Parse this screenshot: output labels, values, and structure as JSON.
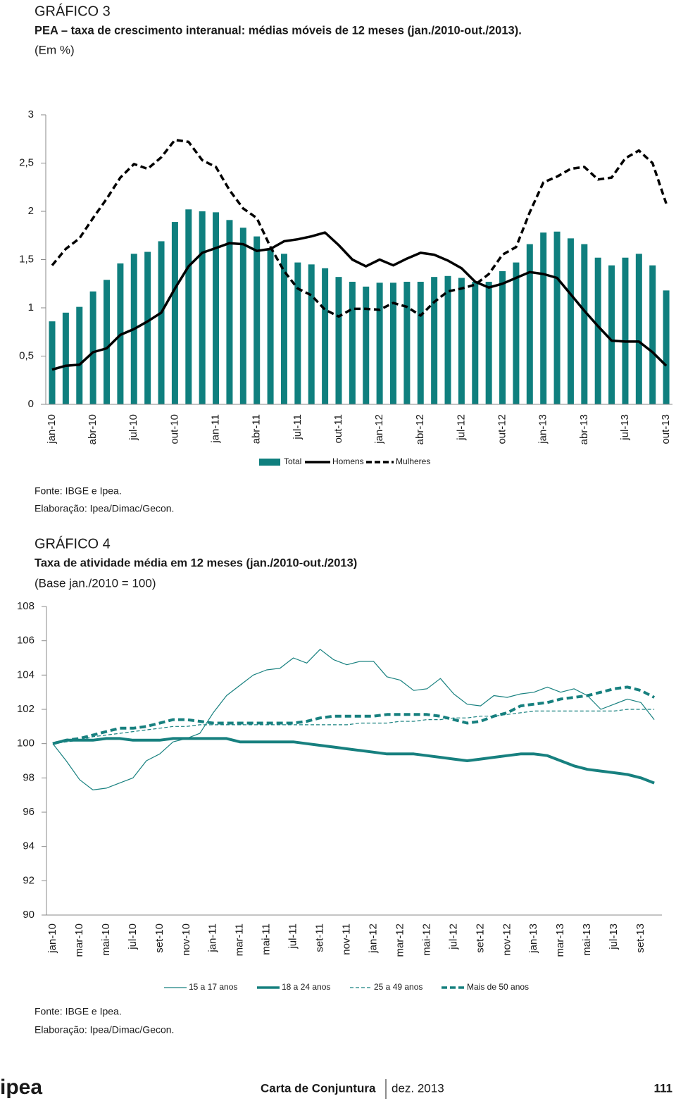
{
  "chart_data": [
    {
      "type": "bar",
      "label": "GRÁFICO 3",
      "title": "PEA – taxa de crescimento interanual: médias móveis de 12 meses (jan./2010-out./2013).",
      "subtitle": "(Em %)",
      "categories": [
        "jan-10",
        null,
        null,
        "abr-10",
        null,
        null,
        "jul-10",
        null,
        null,
        "out-10",
        null,
        null,
        "jan-11",
        null,
        null,
        "abr-11",
        null,
        null,
        "jul-11",
        null,
        null,
        "out-11",
        null,
        null,
        "jan-12",
        null,
        null,
        "abr-12",
        null,
        null,
        "jul-12",
        null,
        null,
        "out-12",
        null,
        null,
        "jan-13",
        null,
        null,
        "abr-13",
        null,
        null,
        "jul-13",
        null,
        null,
        "out-13"
      ],
      "series": [
        {
          "name": "Total",
          "type": "bar",
          "color": "#0f7f7e",
          "values": [
            0.86,
            0.95,
            1.01,
            1.17,
            1.29,
            1.46,
            1.56,
            1.58,
            1.69,
            1.89,
            2.02,
            2.0,
            1.99,
            1.91,
            1.83,
            1.74,
            1.61,
            1.56,
            1.47,
            1.45,
            1.41,
            1.32,
            1.27,
            1.22,
            1.26,
            1.26,
            1.27,
            1.27,
            1.32,
            1.33,
            1.31,
            1.27,
            1.27,
            1.38,
            1.47,
            1.66,
            1.78,
            1.79,
            1.72,
            1.66,
            1.52,
            1.44,
            1.52,
            1.56,
            1.44,
            1.18
          ]
        },
        {
          "name": "Homens",
          "type": "line",
          "style": "solid",
          "color": "#000000",
          "values": [
            0.36,
            0.4,
            0.41,
            0.54,
            0.58,
            0.72,
            0.78,
            0.86,
            0.95,
            1.2,
            1.43,
            1.57,
            1.62,
            1.67,
            1.66,
            1.59,
            1.61,
            1.69,
            1.71,
            1.74,
            1.78,
            1.65,
            1.5,
            1.43,
            1.5,
            1.44,
            1.51,
            1.57,
            1.55,
            1.49,
            1.41,
            1.27,
            1.21,
            1.25,
            1.31,
            1.37,
            1.35,
            1.31,
            1.14,
            0.97,
            0.81,
            0.66,
            0.65,
            0.65,
            0.54,
            0.4
          ]
        },
        {
          "name": "Mulheres",
          "type": "line",
          "style": "dashed",
          "color": "#000000",
          "values": [
            1.44,
            1.61,
            1.72,
            1.93,
            2.13,
            2.35,
            2.49,
            2.44,
            2.56,
            2.74,
            2.72,
            2.53,
            2.46,
            2.22,
            2.03,
            1.93,
            1.63,
            1.38,
            1.2,
            1.13,
            0.98,
            0.91,
            0.99,
            0.99,
            0.98,
            1.05,
            1.01,
            0.92,
            1.06,
            1.17,
            1.2,
            1.24,
            1.35,
            1.55,
            1.63,
            1.99,
            2.3,
            2.36,
            2.44,
            2.46,
            2.33,
            2.35,
            2.55,
            2.63,
            2.5,
            2.08
          ]
        }
      ],
      "ylim": [
        0,
        3
      ],
      "yticks": [
        0,
        {
          "value": 0.5,
          "label": "0,5"
        },
        1,
        {
          "value": 1.5,
          "label": "1,5"
        },
        2,
        {
          "value": 2.5,
          "label": "2,5"
        },
        3
      ],
      "source": "Fonte: IBGE e Ipea.",
      "credit": "Elaboração: Ipea/Dimac/Gecon."
    },
    {
      "type": "line",
      "label": "GRÁFICO 4",
      "title": "Taxa de atividade média em 12 meses (jan./2010-out./2013)",
      "subtitle": "(Base jan./2010 = 100)",
      "categories": [
        "jan-10",
        null,
        "mar-10",
        null,
        "mai-10",
        null,
        "jul-10",
        null,
        "set-10",
        null,
        "nov-10",
        null,
        "jan-11",
        null,
        "mar-11",
        null,
        "mai-11",
        null,
        "jul-11",
        null,
        "set-11",
        null,
        "nov-11",
        null,
        "jan-12",
        null,
        "mar-12",
        null,
        "mai-12",
        null,
        "jul-12",
        null,
        "set-12",
        null,
        "nov-12",
        null,
        "jan-13",
        null,
        "mar-13",
        null,
        "mai-13",
        null,
        "jul-13",
        null,
        "set-13",
        null
      ],
      "series": [
        {
          "name": "15 a 17 anos",
          "type": "line",
          "style": "solid",
          "weight": "thin",
          "color": "#17807f",
          "values": [
            100,
            99.0,
            97.9,
            97.3,
            97.4,
            97.7,
            98.0,
            99.0,
            99.4,
            100.1,
            100.3,
            100.6,
            101.8,
            102.8,
            103.4,
            104.0,
            104.3,
            104.4,
            105.0,
            104.7,
            105.5,
            104.9,
            104.6,
            104.8,
            104.8,
            103.9,
            103.7,
            103.1,
            103.2,
            103.8,
            102.9,
            102.3,
            102.2,
            102.8,
            102.7,
            102.9,
            103.0,
            103.3,
            103.0,
            103.2,
            102.8,
            102.0,
            102.3,
            102.6,
            102.4,
            101.4
          ]
        },
        {
          "name": "18 a 24 anos",
          "type": "line",
          "style": "solid",
          "weight": "thick",
          "color": "#17807f",
          "values": [
            100,
            100.2,
            100.2,
            100.2,
            100.3,
            100.3,
            100.2,
            100.2,
            100.2,
            100.3,
            100.3,
            100.3,
            100.3,
            100.3,
            100.1,
            100.1,
            100.1,
            100.1,
            100.1,
            100.0,
            99.9,
            99.8,
            99.7,
            99.6,
            99.5,
            99.4,
            99.4,
            99.4,
            99.3,
            99.2,
            99.1,
            99.0,
            99.1,
            99.2,
            99.3,
            99.4,
            99.4,
            99.3,
            99.0,
            98.7,
            98.5,
            98.4,
            98.3,
            98.2,
            98.0,
            97.7
          ]
        },
        {
          "name": "25 a 49 anos",
          "type": "line",
          "style": "dashed",
          "weight": "thin",
          "color": "#17807f",
          "values": [
            100,
            100.1,
            100.2,
            100.4,
            100.5,
            100.6,
            100.7,
            100.8,
            100.9,
            101.0,
            101.0,
            101.1,
            101.1,
            101.1,
            101.1,
            101.1,
            101.1,
            101.1,
            101.1,
            101.1,
            101.1,
            101.1,
            101.1,
            101.2,
            101.2,
            101.2,
            101.3,
            101.3,
            101.4,
            101.4,
            101.5,
            101.5,
            101.6,
            101.6,
            101.7,
            101.8,
            101.9,
            101.9,
            101.9,
            101.9,
            101.9,
            101.9,
            101.9,
            102.0,
            102.0,
            102.0
          ]
        },
        {
          "name": "Mais de 50 anos",
          "type": "line",
          "style": "dashed",
          "weight": "thick",
          "color": "#17807f",
          "values": [
            100,
            100.2,
            100.3,
            100.5,
            100.7,
            100.9,
            100.9,
            101.0,
            101.2,
            101.4,
            101.4,
            101.3,
            101.2,
            101.2,
            101.2,
            101.2,
            101.2,
            101.2,
            101.2,
            101.3,
            101.5,
            101.6,
            101.6,
            101.6,
            101.6,
            101.7,
            101.7,
            101.7,
            101.7,
            101.6,
            101.4,
            101.2,
            101.3,
            101.6,
            101.8,
            102.2,
            102.3,
            102.4,
            102.6,
            102.7,
            102.8,
            103.0,
            103.2,
            103.3,
            103.1,
            102.7
          ]
        }
      ],
      "ylim": [
        90,
        108
      ],
      "yticks": [
        90,
        92,
        94,
        96,
        98,
        100,
        102,
        104,
        106,
        108
      ],
      "source": "Fonte: IBGE e Ipea.",
      "credit": "Elaboração: Ipea/Dimac/Gecon."
    }
  ],
  "footer": {
    "logo": "ipea",
    "publication": "Carta de Conjuntura",
    "date": "dez. 2013",
    "page": "111"
  }
}
